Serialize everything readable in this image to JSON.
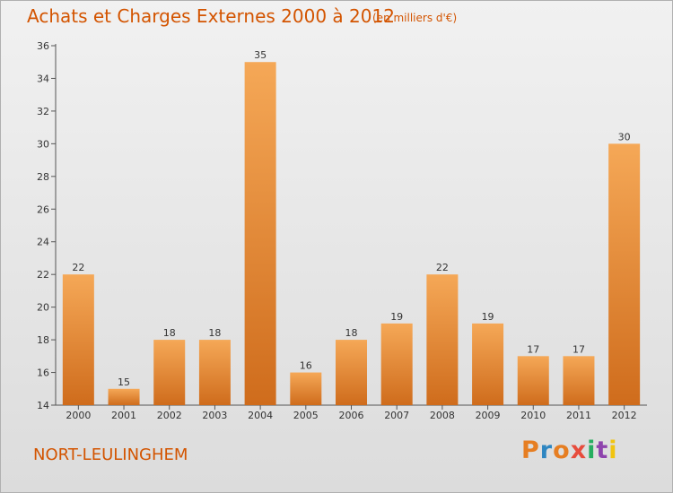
{
  "header": {
    "title": "Achats et Charges Externes 2000 à 2012",
    "subtitle": "(en milliers d'€)"
  },
  "footer": {
    "commune": "NORT-LEULINGHEM",
    "logo": [
      "P",
      "r",
      "o",
      "x",
      "i",
      "t",
      "i"
    ],
    "logo_colors": [
      "#e67e22",
      "#2e86c1",
      "#e67e22",
      "#e74c3c",
      "#27ae60",
      "#8e44ad",
      "#f1c40f"
    ]
  },
  "colors": {
    "bar_light": "#f5a857",
    "bar_dark": "#cf6c1c",
    "title": "#d35400"
  },
  "chart_data": {
    "type": "bar",
    "categories": [
      "2000",
      "2001",
      "2002",
      "2003",
      "2004",
      "2005",
      "2006",
      "2007",
      "2008",
      "2009",
      "2010",
      "2011",
      "2012"
    ],
    "values": [
      22,
      15,
      18,
      18,
      35,
      16,
      18,
      19,
      22,
      19,
      17,
      17,
      30
    ],
    "title": "Achats et Charges Externes 2000 à 2012",
    "ylim": [
      14,
      36
    ],
    "yticks": [
      14,
      16,
      18,
      20,
      22,
      24,
      26,
      28,
      30,
      32,
      34,
      36
    ],
    "grid": false
  }
}
